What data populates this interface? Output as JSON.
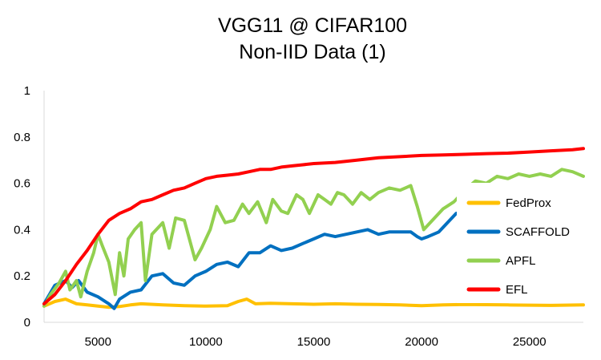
{
  "chart_data": {
    "type": "line",
    "title_lines": [
      "VGG11 @ CIFAR100",
      "Non-IID Data (1)"
    ],
    "xlabel": "",
    "ylabel": "",
    "xlim": [
      2500,
      27500
    ],
    "ylim": [
      0,
      1
    ],
    "x_ticks": [
      "5000",
      "10000",
      "15000",
      "20000",
      "25000"
    ],
    "y_ticks": [
      "0",
      "0.2",
      "0.4",
      "0.6",
      "0.8",
      "1"
    ],
    "grid": false,
    "legend_position": "right",
    "series": [
      {
        "name": "FedProx",
        "color": "#FFC000",
        "points": [
          [
            2500,
            0.07
          ],
          [
            3000,
            0.09
          ],
          [
            3500,
            0.1
          ],
          [
            4000,
            0.08
          ],
          [
            4500,
            0.075
          ],
          [
            5000,
            0.07
          ],
          [
            5500,
            0.065
          ],
          [
            6000,
            0.068
          ],
          [
            6500,
            0.075
          ],
          [
            7000,
            0.08
          ],
          [
            8000,
            0.075
          ],
          [
            9000,
            0.072
          ],
          [
            10000,
            0.07
          ],
          [
            11000,
            0.072
          ],
          [
            11500,
            0.09
          ],
          [
            11900,
            0.1
          ],
          [
            12300,
            0.08
          ],
          [
            13000,
            0.082
          ],
          [
            14000,
            0.08
          ],
          [
            15000,
            0.078
          ],
          [
            16000,
            0.08
          ],
          [
            17000,
            0.078
          ],
          [
            18000,
            0.077
          ],
          [
            19000,
            0.075
          ],
          [
            20000,
            0.072
          ],
          [
            21000,
            0.075
          ],
          [
            22000,
            0.077
          ],
          [
            23000,
            0.076
          ],
          [
            24000,
            0.075
          ],
          [
            25000,
            0.074
          ],
          [
            26000,
            0.073
          ],
          [
            27500,
            0.075
          ]
        ]
      },
      {
        "name": "SCAFFOLD",
        "color": "#0070C0",
        "points": [
          [
            2500,
            0.08
          ],
          [
            3000,
            0.16
          ],
          [
            3500,
            0.18
          ],
          [
            3800,
            0.15
          ],
          [
            4100,
            0.18
          ],
          [
            4500,
            0.13
          ],
          [
            5000,
            0.11
          ],
          [
            5500,
            0.08
          ],
          [
            5750,
            0.06
          ],
          [
            6000,
            0.1
          ],
          [
            6500,
            0.13
          ],
          [
            7000,
            0.14
          ],
          [
            7500,
            0.2
          ],
          [
            8000,
            0.21
          ],
          [
            8500,
            0.17
          ],
          [
            9000,
            0.16
          ],
          [
            9500,
            0.2
          ],
          [
            10000,
            0.22
          ],
          [
            10500,
            0.25
          ],
          [
            11000,
            0.26
          ],
          [
            11500,
            0.24
          ],
          [
            12000,
            0.3
          ],
          [
            12500,
            0.3
          ],
          [
            13000,
            0.33
          ],
          [
            13500,
            0.31
          ],
          [
            14000,
            0.32
          ],
          [
            14500,
            0.34
          ],
          [
            15000,
            0.36
          ],
          [
            15500,
            0.38
          ],
          [
            16000,
            0.37
          ],
          [
            16500,
            0.38
          ],
          [
            17000,
            0.39
          ],
          [
            17500,
            0.4
          ],
          [
            18000,
            0.38
          ],
          [
            18500,
            0.39
          ],
          [
            19000,
            0.39
          ],
          [
            19500,
            0.39
          ],
          [
            19800,
            0.37
          ],
          [
            20000,
            0.36
          ],
          [
            20300,
            0.37
          ],
          [
            20800,
            0.39
          ],
          [
            21200,
            0.43
          ],
          [
            21600,
            0.47
          ],
          [
            22000,
            0.48
          ],
          [
            23000,
            0.48
          ],
          [
            24000,
            0.49
          ],
          [
            25000,
            0.5
          ],
          [
            26000,
            0.51
          ],
          [
            27000,
            0.52
          ],
          [
            27500,
            0.53
          ]
        ]
      },
      {
        "name": "APFL",
        "color": "#92D050",
        "points": [
          [
            2500,
            0.07
          ],
          [
            2800,
            0.12
          ],
          [
            3200,
            0.17
          ],
          [
            3500,
            0.22
          ],
          [
            3700,
            0.14
          ],
          [
            4000,
            0.18
          ],
          [
            4200,
            0.11
          ],
          [
            4500,
            0.22
          ],
          [
            4800,
            0.3
          ],
          [
            5000,
            0.38
          ],
          [
            5200,
            0.33
          ],
          [
            5500,
            0.26
          ],
          [
            5800,
            0.12
          ],
          [
            6000,
            0.3
          ],
          [
            6200,
            0.2
          ],
          [
            6400,
            0.36
          ],
          [
            6700,
            0.4
          ],
          [
            7000,
            0.43
          ],
          [
            7200,
            0.18
          ],
          [
            7500,
            0.38
          ],
          [
            8000,
            0.43
          ],
          [
            8300,
            0.32
          ],
          [
            8600,
            0.45
          ],
          [
            9000,
            0.44
          ],
          [
            9500,
            0.27
          ],
          [
            9800,
            0.32
          ],
          [
            10200,
            0.4
          ],
          [
            10500,
            0.5
          ],
          [
            10900,
            0.43
          ],
          [
            11300,
            0.44
          ],
          [
            11700,
            0.51
          ],
          [
            12000,
            0.47
          ],
          [
            12400,
            0.52
          ],
          [
            12800,
            0.43
          ],
          [
            13100,
            0.53
          ],
          [
            13500,
            0.48
          ],
          [
            13800,
            0.47
          ],
          [
            14200,
            0.55
          ],
          [
            14500,
            0.53
          ],
          [
            14800,
            0.47
          ],
          [
            15200,
            0.55
          ],
          [
            15500,
            0.53
          ],
          [
            15800,
            0.51
          ],
          [
            16100,
            0.56
          ],
          [
            16400,
            0.55
          ],
          [
            16800,
            0.51
          ],
          [
            17200,
            0.56
          ],
          [
            17600,
            0.53
          ],
          [
            18000,
            0.56
          ],
          [
            18500,
            0.58
          ],
          [
            19000,
            0.57
          ],
          [
            19500,
            0.59
          ],
          [
            19800,
            0.5
          ],
          [
            20100,
            0.4
          ],
          [
            20500,
            0.44
          ],
          [
            21000,
            0.49
          ],
          [
            21500,
            0.52
          ],
          [
            22000,
            0.57
          ],
          [
            22500,
            0.61
          ],
          [
            23000,
            0.6
          ],
          [
            23500,
            0.63
          ],
          [
            24000,
            0.62
          ],
          [
            24500,
            0.64
          ],
          [
            25000,
            0.63
          ],
          [
            25500,
            0.64
          ],
          [
            26000,
            0.63
          ],
          [
            26500,
            0.66
          ],
          [
            27000,
            0.65
          ],
          [
            27500,
            0.63
          ]
        ]
      },
      {
        "name": "EFL",
        "color": "#FF0000",
        "points": [
          [
            2500,
            0.08
          ],
          [
            3000,
            0.12
          ],
          [
            3500,
            0.18
          ],
          [
            4000,
            0.25
          ],
          [
            4500,
            0.31
          ],
          [
            5000,
            0.38
          ],
          [
            5500,
            0.44
          ],
          [
            6000,
            0.47
          ],
          [
            6500,
            0.49
          ],
          [
            7000,
            0.52
          ],
          [
            7500,
            0.53
          ],
          [
            8000,
            0.55
          ],
          [
            8500,
            0.57
          ],
          [
            9000,
            0.58
          ],
          [
            9500,
            0.6
          ],
          [
            10000,
            0.62
          ],
          [
            10500,
            0.63
          ],
          [
            11000,
            0.635
          ],
          [
            11500,
            0.64
          ],
          [
            12000,
            0.65
          ],
          [
            12500,
            0.66
          ],
          [
            13000,
            0.66
          ],
          [
            13500,
            0.67
          ],
          [
            14000,
            0.675
          ],
          [
            14500,
            0.68
          ],
          [
            15000,
            0.685
          ],
          [
            16000,
            0.69
          ],
          [
            17000,
            0.7
          ],
          [
            18000,
            0.71
          ],
          [
            19000,
            0.715
          ],
          [
            20000,
            0.72
          ],
          [
            21000,
            0.722
          ],
          [
            22000,
            0.725
          ],
          [
            23000,
            0.728
          ],
          [
            24000,
            0.73
          ],
          [
            25000,
            0.735
          ],
          [
            26000,
            0.74
          ],
          [
            27000,
            0.745
          ],
          [
            27500,
            0.75
          ]
        ]
      }
    ]
  }
}
